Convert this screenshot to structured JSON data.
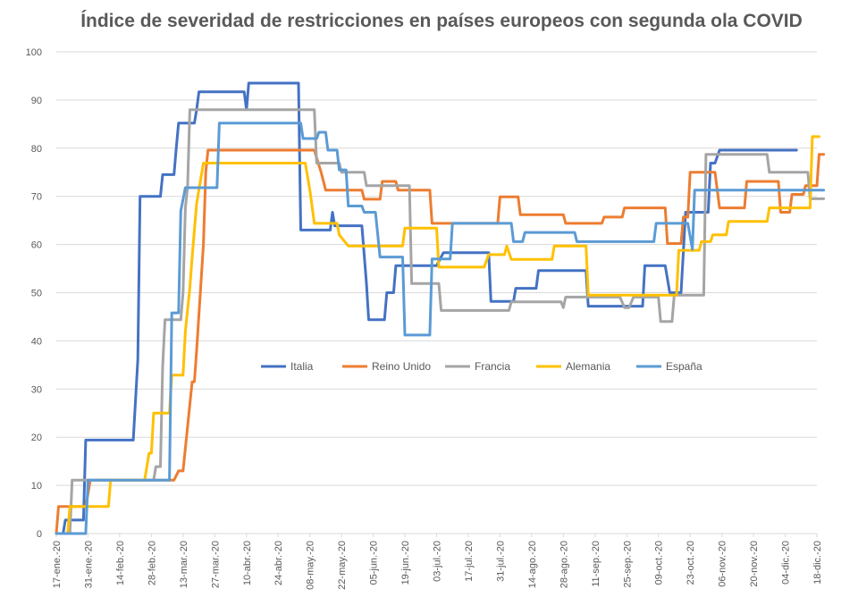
{
  "chart_data": {
    "type": "line",
    "title": "Índice de severidad de restricciones en países europeos con segunda ola COVID",
    "xlabel": "",
    "ylabel": "",
    "x_range": [
      "2020-01-17",
      "2020-12-18"
    ],
    "ylim": [
      0,
      100
    ],
    "y_ticks": [
      0,
      10,
      20,
      30,
      40,
      50,
      60,
      70,
      80,
      90,
      100
    ],
    "x_tick_labels": [
      "17-ene.-20",
      "31-ene.-20",
      "14-feb.-20",
      "28-feb.-20",
      "13-mar.-20",
      "27-mar.-20",
      "10-abr.-20",
      "24-abr.-20",
      "08-may.-20",
      "22-may.-20",
      "05-jun.-20",
      "19-jun.-20",
      "03-jul.-20",
      "17-jul.-20",
      "31-jul.-20",
      "14-ago.-20",
      "28-ago.-20",
      "11-sep.-20",
      "25-sep.-20",
      "09-oct.-20",
      "23-oct.-20",
      "06-nov.-20",
      "20-nov.-20",
      "04-dic.-20",
      "18-dic.-20"
    ],
    "grid": "horizontal",
    "legend_position": "center",
    "series": [
      {
        "name": "Italia",
        "color": "#4472C4",
        "points": [
          [
            "2020-01-17",
            0
          ],
          [
            "2020-01-20",
            0
          ],
          [
            "2020-01-21",
            2.8
          ],
          [
            "2020-01-29",
            2.8
          ],
          [
            "2020-01-30",
            19.4
          ],
          [
            "2020-02-20",
            19.4
          ],
          [
            "2020-02-22",
            36.1
          ],
          [
            "2020-02-23",
            70
          ],
          [
            "2020-03-03",
            70
          ],
          [
            "2020-03-04",
            74.5
          ],
          [
            "2020-03-09",
            74.5
          ],
          [
            "2020-03-10",
            80
          ],
          [
            "2020-03-11",
            85.2
          ],
          [
            "2020-03-18",
            85.2
          ],
          [
            "2020-03-19",
            88
          ],
          [
            "2020-03-20",
            91.7
          ],
          [
            "2020-04-09",
            91.7
          ],
          [
            "2020-04-10",
            88
          ],
          [
            "2020-04-11",
            93.5
          ],
          [
            "2020-05-03",
            93.5
          ],
          [
            "2020-05-04",
            63
          ],
          [
            "2020-05-17",
            63
          ],
          [
            "2020-05-18",
            66.7
          ],
          [
            "2020-05-19",
            63.9
          ],
          [
            "2020-05-31",
            63.9
          ],
          [
            "2020-06-02",
            52
          ],
          [
            "2020-06-03",
            44.4
          ],
          [
            "2020-06-10",
            44.4
          ],
          [
            "2020-06-11",
            50
          ],
          [
            "2020-06-14",
            50
          ],
          [
            "2020-06-15",
            55.6
          ],
          [
            "2020-07-03",
            55.6
          ],
          [
            "2020-07-06",
            58.3
          ],
          [
            "2020-07-26",
            58.3
          ],
          [
            "2020-07-27",
            48.2
          ],
          [
            "2020-08-06",
            48.2
          ],
          [
            "2020-08-07",
            50.9
          ],
          [
            "2020-08-16",
            50.9
          ],
          [
            "2020-08-17",
            54.6
          ],
          [
            "2020-09-07",
            54.6
          ],
          [
            "2020-09-08",
            47.2
          ],
          [
            "2020-10-02",
            47.2
          ],
          [
            "2020-10-03",
            55.6
          ],
          [
            "2020-10-12",
            55.6
          ],
          [
            "2020-10-14",
            50
          ],
          [
            "2020-10-19",
            50
          ],
          [
            "2020-10-21",
            66.7
          ],
          [
            "2020-10-31",
            66.7
          ],
          [
            "2020-11-01",
            76.9
          ],
          [
            "2020-11-03",
            76.9
          ],
          [
            "2020-11-05",
            79.6
          ],
          [
            "2020-12-09",
            79.6
          ]
        ]
      },
      {
        "name": "Reino Unido",
        "color": "#ED7D31",
        "points": [
          [
            "2020-01-17",
            0
          ],
          [
            "2020-01-18",
            5.6
          ],
          [
            "2020-01-30",
            5.6
          ],
          [
            "2020-01-31",
            8.3
          ],
          [
            "2020-02-01",
            11.1
          ],
          [
            "2020-03-07",
            11.1
          ],
          [
            "2020-03-09",
            11.1
          ],
          [
            "2020-03-11",
            13
          ],
          [
            "2020-03-13",
            13
          ],
          [
            "2020-03-15",
            22.2
          ],
          [
            "2020-03-17",
            31.5
          ],
          [
            "2020-03-18",
            31.5
          ],
          [
            "2020-03-19",
            38
          ],
          [
            "2020-03-22",
            60
          ],
          [
            "2020-03-23",
            75
          ],
          [
            "2020-03-24",
            79.6
          ],
          [
            "2020-05-10",
            79.6
          ],
          [
            "2020-05-13",
            75
          ],
          [
            "2020-05-15",
            71.3
          ],
          [
            "2020-05-31",
            71.3
          ],
          [
            "2020-06-01",
            69.4
          ],
          [
            "2020-06-08",
            69.4
          ],
          [
            "2020-06-09",
            73.1
          ],
          [
            "2020-06-15",
            73.1
          ],
          [
            "2020-06-16",
            71.3
          ],
          [
            "2020-06-30",
            71.3
          ],
          [
            "2020-07-01",
            64.4
          ],
          [
            "2020-07-30",
            64.4
          ],
          [
            "2020-07-31",
            69.9
          ],
          [
            "2020-08-08",
            69.9
          ],
          [
            "2020-08-09",
            66.2
          ],
          [
            "2020-08-28",
            66.2
          ],
          [
            "2020-08-29",
            64.4
          ],
          [
            "2020-09-14",
            64.4
          ],
          [
            "2020-09-15",
            65.7
          ],
          [
            "2020-09-23",
            65.7
          ],
          [
            "2020-09-24",
            67.6
          ],
          [
            "2020-10-12",
            67.6
          ],
          [
            "2020-10-13",
            60.2
          ],
          [
            "2020-10-19",
            60.2
          ],
          [
            "2020-10-20",
            65.7
          ],
          [
            "2020-10-22",
            65.7
          ],
          [
            "2020-10-23",
            75
          ],
          [
            "2020-11-03",
            75
          ],
          [
            "2020-11-05",
            67.6
          ],
          [
            "2020-11-16",
            67.6
          ],
          [
            "2020-11-17",
            73.1
          ],
          [
            "2020-12-01",
            73.1
          ],
          [
            "2020-12-02",
            66.7
          ],
          [
            "2020-12-06",
            66.7
          ],
          [
            "2020-12-07",
            70.4
          ],
          [
            "2020-12-12",
            70.4
          ],
          [
            "2020-12-13",
            72.2
          ],
          [
            "2020-12-18",
            72.2
          ],
          [
            "2020-12-19",
            78.7
          ],
          [
            "2020-12-21",
            78.7
          ]
        ]
      },
      {
        "name": "Francia",
        "color": "#A5A5A5",
        "points": [
          [
            "2020-01-17",
            0
          ],
          [
            "2020-01-23",
            0
          ],
          [
            "2020-01-24",
            11.1
          ],
          [
            "2020-02-29",
            11.1
          ],
          [
            "2020-03-01",
            13.9
          ],
          [
            "2020-03-03",
            13.9
          ],
          [
            "2020-03-04",
            34.7
          ],
          [
            "2020-03-05",
            44.4
          ],
          [
            "2020-03-12",
            44.4
          ],
          [
            "2020-03-13",
            50
          ],
          [
            "2020-03-14",
            67.6
          ],
          [
            "2020-03-15",
            72
          ],
          [
            "2020-03-16",
            88
          ],
          [
            "2020-05-10",
            88
          ],
          [
            "2020-05-11",
            76.9
          ],
          [
            "2020-05-21",
            76.9
          ],
          [
            "2020-05-22",
            75
          ],
          [
            "2020-06-01",
            75
          ],
          [
            "2020-06-02",
            72.2
          ],
          [
            "2020-06-21",
            72.2
          ],
          [
            "2020-06-22",
            51.9
          ],
          [
            "2020-07-04",
            51.9
          ],
          [
            "2020-07-05",
            46.3
          ],
          [
            "2020-08-04",
            46.3
          ],
          [
            "2020-08-05",
            48.1
          ],
          [
            "2020-08-27",
            48.1
          ],
          [
            "2020-08-28",
            46.9
          ],
          [
            "2020-08-29",
            49.1
          ],
          [
            "2020-09-22",
            49.1
          ],
          [
            "2020-09-24",
            46.9
          ],
          [
            "2020-09-26",
            46.9
          ],
          [
            "2020-09-28",
            49.1
          ],
          [
            "2020-10-09",
            49.1
          ],
          [
            "2020-10-10",
            44
          ],
          [
            "2020-10-15",
            44
          ],
          [
            "2020-10-16",
            49.5
          ],
          [
            "2020-10-29",
            49.5
          ],
          [
            "2020-10-30",
            78.7
          ],
          [
            "2020-11-26",
            78.7
          ],
          [
            "2020-11-27",
            75
          ],
          [
            "2020-12-14",
            75
          ],
          [
            "2020-12-15",
            69.5
          ],
          [
            "2020-12-21",
            69.5
          ]
        ]
      },
      {
        "name": "Alemania",
        "color": "#FFC000",
        "points": [
          [
            "2020-01-17",
            0
          ],
          [
            "2020-01-22",
            0
          ],
          [
            "2020-01-23",
            5.6
          ],
          [
            "2020-02-09",
            5.6
          ],
          [
            "2020-02-10",
            11.1
          ],
          [
            "2020-02-25",
            11.1
          ],
          [
            "2020-02-27",
            16.7
          ],
          [
            "2020-02-28",
            16.7
          ],
          [
            "2020-02-29",
            25
          ],
          [
            "2020-03-07",
            25
          ],
          [
            "2020-03-08",
            32.9
          ],
          [
            "2020-03-13",
            32.9
          ],
          [
            "2020-03-14",
            42
          ],
          [
            "2020-03-16",
            51
          ],
          [
            "2020-03-17",
            57.4
          ],
          [
            "2020-03-19",
            68.5
          ],
          [
            "2020-03-22",
            76.9
          ],
          [
            "2020-05-06",
            76.9
          ],
          [
            "2020-05-08",
            71.3
          ],
          [
            "2020-05-10",
            64.4
          ],
          [
            "2020-05-20",
            64.4
          ],
          [
            "2020-05-21",
            62
          ],
          [
            "2020-05-25",
            59.7
          ],
          [
            "2020-06-18",
            59.7
          ],
          [
            "2020-06-19",
            63.4
          ],
          [
            "2020-07-03",
            63.4
          ],
          [
            "2020-07-04",
            55.3
          ],
          [
            "2020-07-24",
            55.3
          ],
          [
            "2020-07-26",
            57.9
          ],
          [
            "2020-08-02",
            57.9
          ],
          [
            "2020-08-03",
            59.7
          ],
          [
            "2020-08-05",
            56.9
          ],
          [
            "2020-08-23",
            56.9
          ],
          [
            "2020-08-24",
            59.7
          ],
          [
            "2020-09-07",
            59.7
          ],
          [
            "2020-09-08",
            49.5
          ],
          [
            "2020-10-17",
            49.5
          ],
          [
            "2020-10-18",
            58.8
          ],
          [
            "2020-10-27",
            58.8
          ],
          [
            "2020-10-28",
            60.6
          ],
          [
            "2020-11-01",
            60.6
          ],
          [
            "2020-11-02",
            62
          ],
          [
            "2020-11-08",
            62
          ],
          [
            "2020-11-09",
            64.8
          ],
          [
            "2020-11-26",
            64.8
          ],
          [
            "2020-11-27",
            67.6
          ],
          [
            "2020-12-15",
            67.6
          ],
          [
            "2020-12-16",
            82.4
          ],
          [
            "2020-12-19",
            82.4
          ]
        ]
      },
      {
        "name": "España",
        "color": "#5B9BD5",
        "points": [
          [
            "2020-01-17",
            0
          ],
          [
            "2020-01-30",
            0
          ],
          [
            "2020-01-31",
            11.1
          ],
          [
            "2020-03-07",
            11.1
          ],
          [
            "2020-03-08",
            45.8
          ],
          [
            "2020-03-11",
            45.8
          ],
          [
            "2020-03-12",
            67
          ],
          [
            "2020-03-14",
            71.8
          ],
          [
            "2020-03-28",
            71.8
          ],
          [
            "2020-03-29",
            85.2
          ],
          [
            "2020-05-04",
            85.2
          ],
          [
            "2020-05-05",
            82
          ],
          [
            "2020-05-11",
            82
          ],
          [
            "2020-05-12",
            83.3
          ],
          [
            "2020-05-15",
            83.3
          ],
          [
            "2020-05-16",
            79.6
          ],
          [
            "2020-05-20",
            79.6
          ],
          [
            "2020-05-21",
            75.5
          ],
          [
            "2020-05-24",
            75.5
          ],
          [
            "2020-05-25",
            68
          ],
          [
            "2020-05-31",
            68
          ],
          [
            "2020-06-01",
            66.7
          ],
          [
            "2020-06-06",
            66.7
          ],
          [
            "2020-06-08",
            57.4
          ],
          [
            "2020-06-18",
            57.4
          ],
          [
            "2020-06-19",
            41.2
          ],
          [
            "2020-06-30",
            41.2
          ],
          [
            "2020-07-01",
            57
          ],
          [
            "2020-07-09",
            57
          ],
          [
            "2020-07-10",
            64.4
          ],
          [
            "2020-08-05",
            64.4
          ],
          [
            "2020-08-06",
            60.6
          ],
          [
            "2020-08-10",
            60.6
          ],
          [
            "2020-08-11",
            62.5
          ],
          [
            "2020-09-02",
            62.5
          ],
          [
            "2020-09-03",
            60.6
          ],
          [
            "2020-10-07",
            60.6
          ],
          [
            "2020-10-08",
            64.4
          ],
          [
            "2020-10-22",
            64.4
          ],
          [
            "2020-10-24",
            59
          ],
          [
            "2020-10-25",
            71.3
          ],
          [
            "2020-12-21",
            71.3
          ]
        ]
      }
    ]
  }
}
